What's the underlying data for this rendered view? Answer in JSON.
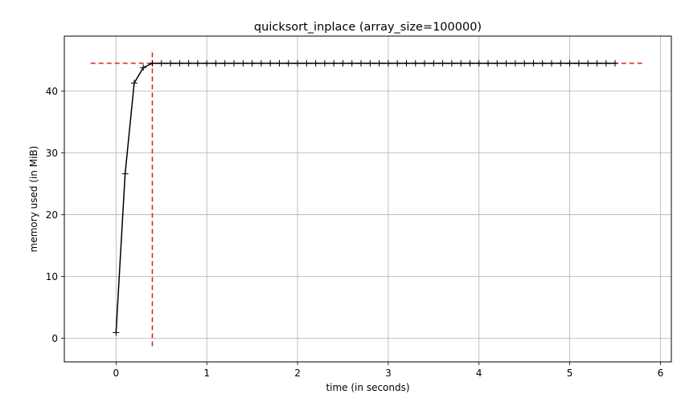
{
  "chart_data": {
    "type": "line",
    "title": "quicksort_inplace (array_size=100000)",
    "xlabel": "time (in seconds)",
    "ylabel": "memory used (in MiB)",
    "xlim": [
      -0.57,
      6.12
    ],
    "ylim": [
      -3.85,
      48.9
    ],
    "xticks": [
      0,
      1,
      2,
      3,
      4,
      5,
      6
    ],
    "yticks": [
      0,
      10,
      20,
      30,
      40
    ],
    "grid": true,
    "legend": "none",
    "series_color": "#000000",
    "marker": "+",
    "reference_color": "#d62728",
    "series": [
      {
        "x": [
          0.0,
          0.1,
          0.2,
          0.3,
          0.4,
          0.5,
          0.6,
          0.7,
          0.8,
          0.9,
          1.0,
          1.1,
          1.2,
          1.3,
          1.4,
          1.5,
          1.6,
          1.7,
          1.8,
          1.9,
          2.0,
          2.1,
          2.2,
          2.3,
          2.4,
          2.5,
          2.6,
          2.7,
          2.8,
          2.9,
          3.0,
          3.1,
          3.2,
          3.3,
          3.4,
          3.5,
          3.6,
          3.7,
          3.8,
          3.9,
          4.0,
          4.1,
          4.2,
          4.3,
          4.4,
          4.5,
          4.6,
          4.7,
          4.8,
          4.9,
          5.0,
          5.1,
          5.2,
          5.3,
          5.4,
          5.5
        ],
        "y": [
          0.9,
          26.6,
          41.3,
          43.8,
          44.5,
          44.5,
          44.5,
          44.5,
          44.5,
          44.5,
          44.5,
          44.5,
          44.5,
          44.5,
          44.5,
          44.5,
          44.5,
          44.5,
          44.5,
          44.5,
          44.5,
          44.5,
          44.5,
          44.5,
          44.5,
          44.5,
          44.5,
          44.5,
          44.5,
          44.5,
          44.5,
          44.5,
          44.5,
          44.5,
          44.5,
          44.5,
          44.5,
          44.5,
          44.5,
          44.5,
          44.5,
          44.5,
          44.5,
          44.5,
          44.5,
          44.5,
          44.5,
          44.5,
          44.5,
          44.5,
          44.5,
          44.5,
          44.5,
          44.5,
          44.5,
          44.5
        ]
      }
    ],
    "reference_lines": [
      {
        "orientation": "horizontal",
        "y": 44.5,
        "x_from": -0.28,
        "x_to": 5.8
      },
      {
        "orientation": "vertical",
        "x": 0.4,
        "y_from": -1.3,
        "y_to": 46.8
      }
    ]
  }
}
